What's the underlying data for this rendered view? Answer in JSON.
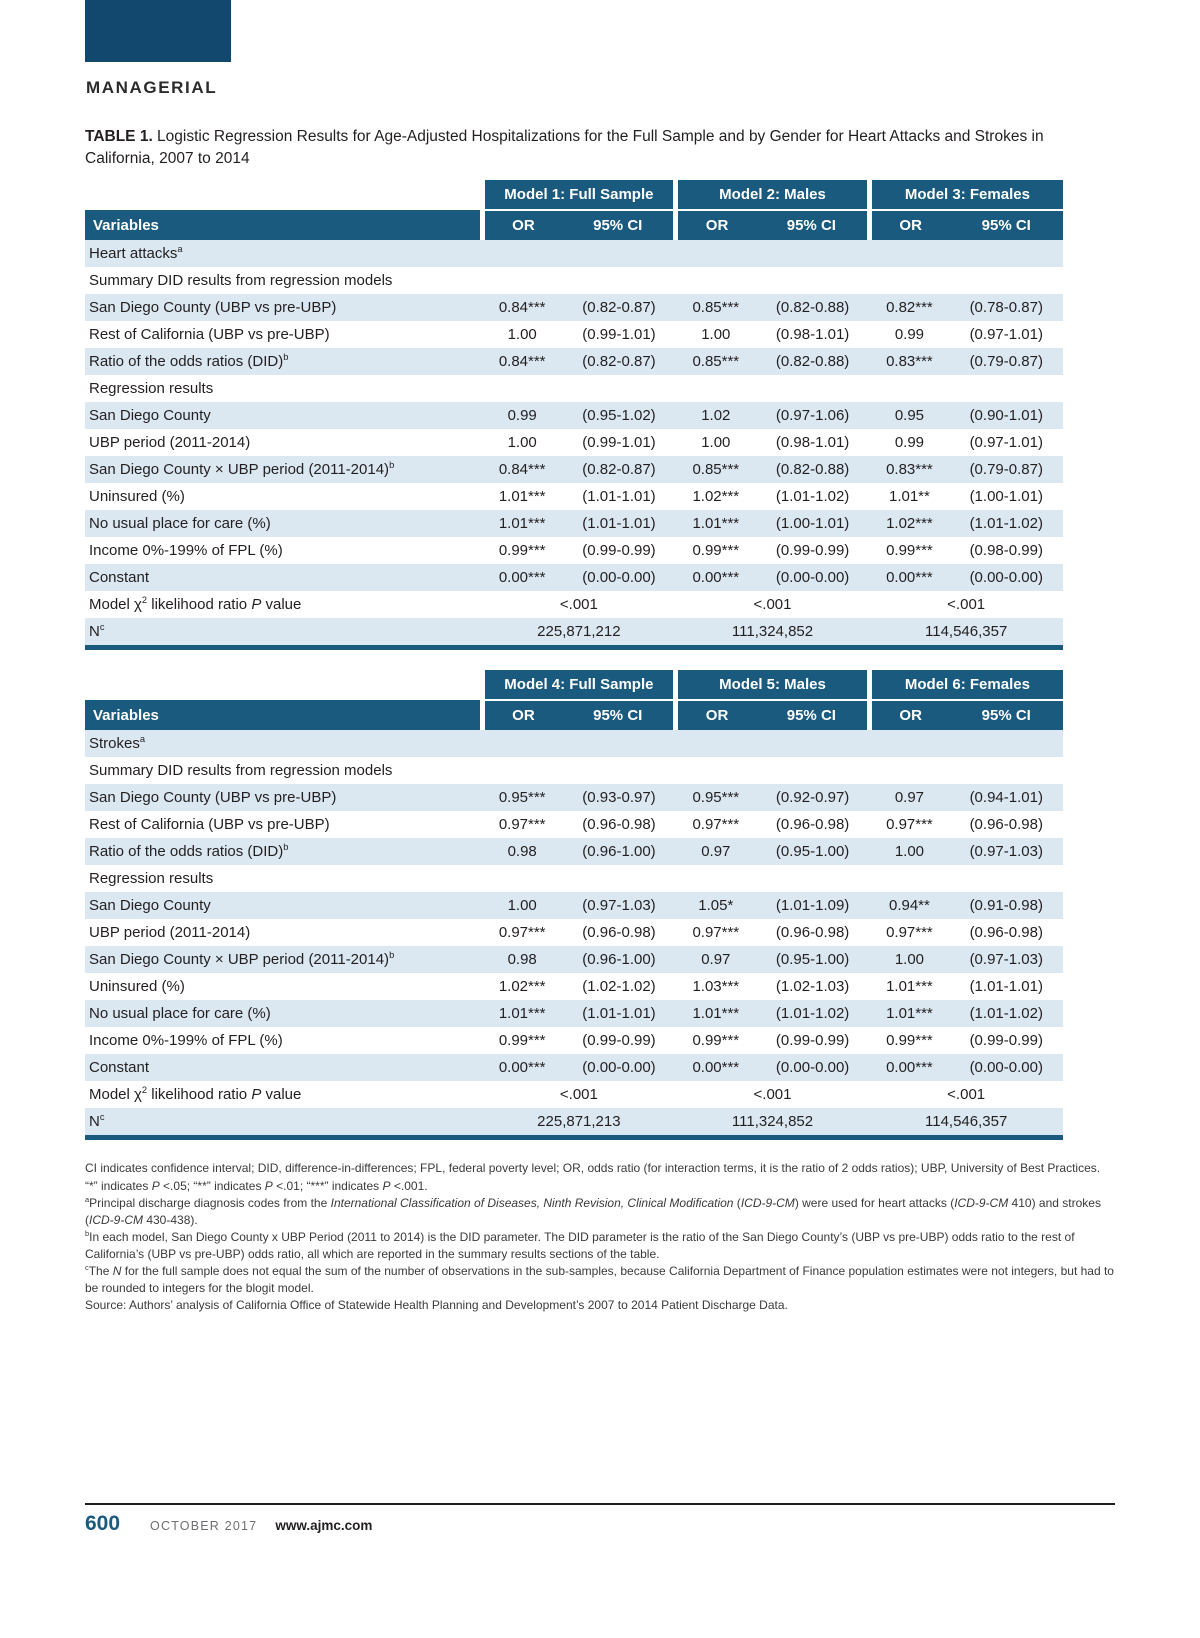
{
  "page": {
    "section_label": "MANAGERIAL"
  },
  "colors": {
    "header_blue": "#1a5a7e",
    "row_shade_blue": "#dbe8f2",
    "logo_navy": "#12486e"
  },
  "title": {
    "label": "TABLE 1.",
    "text": " Logistic Regression Results for Age-Adjusted Hospitalizations for the Full Sample and by Gender for Heart Attacks and Strokes in California, 2007 to 2014"
  },
  "tables": [
    {
      "models": [
        "Model 1: Full Sample",
        "Model 2: Males",
        "Model 3: Females"
      ],
      "variables_label": "Variables",
      "sub_headers": [
        "OR",
        "95% CI"
      ],
      "rows": [
        {
          "type": "section",
          "label": [
            {
              "t": "Heart attacks"
            },
            {
              "t": "a",
              "sup": true
            }
          ]
        },
        {
          "type": "subsection",
          "label": "Summary DID results from regression models"
        },
        {
          "type": "data",
          "label": "San Diego County (UBP vs pre-UBP)",
          "values": [
            "0.84***",
            "(0.82-0.87)",
            "0.85***",
            "(0.82-0.88)",
            "0.82***",
            "(0.78-0.87)"
          ]
        },
        {
          "type": "data",
          "label": "Rest of California (UBP vs pre-UBP)",
          "values": [
            "1.00",
            "(0.99-1.01)",
            "1.00",
            "(0.98-1.01)",
            "0.99",
            "(0.97-1.01)"
          ]
        },
        {
          "type": "data",
          "label": [
            {
              "t": "Ratio of the odds ratios (DID)"
            },
            {
              "t": "b",
              "sup": true
            }
          ],
          "values": [
            "0.84***",
            "(0.82-0.87)",
            "0.85***",
            "(0.82-0.88)",
            "0.83***",
            "(0.79-0.87)"
          ]
        },
        {
          "type": "subsection",
          "label": "Regression results"
        },
        {
          "type": "data",
          "label": "San Diego County",
          "values": [
            "0.99",
            "(0.95-1.02)",
            "1.02",
            "(0.97-1.06)",
            "0.95",
            "(0.90-1.01)"
          ]
        },
        {
          "type": "data",
          "label": "UBP period (2011-2014)",
          "values": [
            "1.00",
            "(0.99-1.01)",
            "1.00",
            "(0.98-1.01)",
            "0.99",
            "(0.97-1.01)"
          ]
        },
        {
          "type": "data",
          "label": [
            {
              "t": "San Diego County × UBP period (2011-2014)"
            },
            {
              "t": "b",
              "sup": true
            }
          ],
          "values": [
            "0.84***",
            "(0.82-0.87)",
            "0.85***",
            "(0.82-0.88)",
            "0.83***",
            "(0.79-0.87)"
          ]
        },
        {
          "type": "data",
          "label": "Uninsured (%)",
          "values": [
            "1.01***",
            "(1.01-1.01)",
            "1.02***",
            "(1.01-1.02)",
            "1.01**",
            "(1.00-1.01)"
          ]
        },
        {
          "type": "data",
          "label": "No usual place for care (%)",
          "values": [
            "1.01***",
            "(1.01-1.01)",
            "1.01***",
            "(1.00-1.01)",
            "1.02***",
            "(1.01-1.02)"
          ]
        },
        {
          "type": "data",
          "label": "Income 0%-199% of FPL (%)",
          "values": [
            "0.99***",
            "(0.99-0.99)",
            "0.99***",
            "(0.99-0.99)",
            "0.99***",
            "(0.98-0.99)"
          ]
        },
        {
          "type": "data",
          "label": "Constant",
          "values": [
            "0.00***",
            "(0.00-0.00)",
            "0.00***",
            "(0.00-0.00)",
            "0.00***",
            "(0.00-0.00)"
          ]
        },
        {
          "type": "span",
          "label": [
            {
              "t": "Model χ"
            },
            {
              "t": "2",
              "sup": true
            },
            {
              "t": " likelihood ratio "
            },
            {
              "t": "P",
              "i": true
            },
            {
              "t": " value"
            }
          ],
          "values": [
            "<.001",
            "<.001",
            "<.001"
          ]
        },
        {
          "type": "span",
          "label": [
            {
              "t": "N"
            },
            {
              "t": "c",
              "sup": true
            }
          ],
          "values": [
            "225,871,212",
            "111,324,852",
            "114,546,357"
          ]
        }
      ]
    },
    {
      "models": [
        "Model 4: Full Sample",
        "Model 5: Males",
        "Model 6: Females"
      ],
      "variables_label": "Variables",
      "sub_headers": [
        "OR",
        "95% CI"
      ],
      "rows": [
        {
          "type": "section",
          "label": [
            {
              "t": "Strokes"
            },
            {
              "t": "a",
              "sup": true
            }
          ]
        },
        {
          "type": "subsection",
          "label": "Summary DID results from regression models"
        },
        {
          "type": "data",
          "label": "San Diego County (UBP vs pre-UBP)",
          "values": [
            "0.95***",
            "(0.93-0.97)",
            "0.95***",
            "(0.92-0.97)",
            "0.97",
            "(0.94-1.01)"
          ]
        },
        {
          "type": "data",
          "label": "Rest of California (UBP vs pre-UBP)",
          "values": [
            "0.97***",
            "(0.96-0.98)",
            "0.97***",
            "(0.96-0.98)",
            "0.97***",
            "(0.96-0.98)"
          ]
        },
        {
          "type": "data",
          "label": [
            {
              "t": "Ratio of the odds ratios (DID)"
            },
            {
              "t": "b",
              "sup": true
            }
          ],
          "values": [
            "0.98",
            "(0.96-1.00)",
            "0.97",
            "(0.95-1.00)",
            "1.00",
            "(0.97-1.03)"
          ]
        },
        {
          "type": "subsection",
          "label": "Regression results"
        },
        {
          "type": "data",
          "label": "San Diego County",
          "values": [
            "1.00",
            "(0.97-1.03)",
            "1.05*",
            "(1.01-1.09)",
            "0.94**",
            "(0.91-0.98)"
          ]
        },
        {
          "type": "data",
          "label": "UBP period (2011-2014)",
          "values": [
            "0.97***",
            "(0.96-0.98)",
            "0.97***",
            "(0.96-0.98)",
            "0.97***",
            "(0.96-0.98)"
          ]
        },
        {
          "type": "data",
          "label": [
            {
              "t": "San Diego County × UBP period (2011-2014)"
            },
            {
              "t": "b",
              "sup": true
            }
          ],
          "values": [
            "0.98",
            "(0.96-1.00)",
            "0.97",
            "(0.95-1.00)",
            "1.00",
            "(0.97-1.03)"
          ]
        },
        {
          "type": "data",
          "label": "Uninsured (%)",
          "values": [
            "1.02***",
            "(1.02-1.02)",
            "1.03***",
            "(1.02-1.03)",
            "1.01***",
            "(1.01-1.01)"
          ]
        },
        {
          "type": "data",
          "label": "No usual place for care (%)",
          "values": [
            "1.01***",
            "(1.01-1.01)",
            "1.01***",
            "(1.01-1.02)",
            "1.01***",
            "(1.01-1.02)"
          ]
        },
        {
          "type": "data",
          "label": "Income 0%-199% of FPL (%)",
          "values": [
            "0.99***",
            "(0.99-0.99)",
            "0.99***",
            "(0.99-0.99)",
            "0.99***",
            "(0.99-0.99)"
          ]
        },
        {
          "type": "data",
          "label": "Constant",
          "values": [
            "0.00***",
            "(0.00-0.00)",
            "0.00***",
            "(0.00-0.00)",
            "0.00***",
            "(0.00-0.00)"
          ]
        },
        {
          "type": "span",
          "label": [
            {
              "t": "Model χ"
            },
            {
              "t": "2",
              "sup": true
            },
            {
              "t": " likelihood ratio "
            },
            {
              "t": "P",
              "i": true
            },
            {
              "t": " value"
            }
          ],
          "values": [
            "<.001",
            "<.001",
            "<.001"
          ]
        },
        {
          "type": "span",
          "label": [
            {
              "t": "N"
            },
            {
              "t": "c",
              "sup": true
            }
          ],
          "values": [
            "225,871,213",
            "111,324,852",
            "114,546,357"
          ]
        }
      ]
    }
  ],
  "footnotes": [
    {
      "parts": [
        {
          "t": "CI indicates confidence interval; DID, difference-in-differences; FPL, federal poverty level; OR, odds ratio (for interaction terms, it is the ratio of 2 odds ratios); UBP, University of Best Practices."
        }
      ]
    },
    {
      "parts": [
        {
          "t": "“*” indicates "
        },
        {
          "t": "P",
          "i": true
        },
        {
          "t": " <.05; “**” indicates "
        },
        {
          "t": "P",
          "i": true
        },
        {
          "t": " <.01; “***” indicates "
        },
        {
          "t": "P",
          "i": true
        },
        {
          "t": " <.001."
        }
      ]
    },
    {
      "parts": [
        {
          "t": "a",
          "sup": true
        },
        {
          "t": "Principal discharge diagnosis codes from the "
        },
        {
          "t": "International Classification of Diseases, Ninth Revision, Clinical Modification",
          "i": true
        },
        {
          "t": " ("
        },
        {
          "t": "ICD-9-CM",
          "i": true
        },
        {
          "t": ") were used for heart attacks ("
        },
        {
          "t": "ICD-9-CM",
          "i": true
        },
        {
          "t": " 410) and strokes ("
        },
        {
          "t": "ICD-9-CM",
          "i": true
        },
        {
          "t": " 430-438)."
        }
      ]
    },
    {
      "parts": [
        {
          "t": "b",
          "sup": true
        },
        {
          "t": "In each model, San Diego County x UBP Period (2011 to 2014) is the DID parameter. The DID parameter is the ratio of the San Diego County’s (UBP vs pre-UBP) odds ratio to the rest of California’s (UBP vs pre-UBP) odds ratio, all which are reported in the summary results sections of the table."
        }
      ]
    },
    {
      "parts": [
        {
          "t": "c",
          "sup": true
        },
        {
          "t": "The "
        },
        {
          "t": "N",
          "i": true
        },
        {
          "t": " for the full sample does not equal the sum of the number of observations in the sub-samples, because California Department of Finance population estimates were not integers, but had to be rounded to integers for the blogit model."
        }
      ]
    },
    {
      "parts": [
        {
          "t": "Source: Authors’ analysis of California Office of Statewide Health Planning and Development’s 2007 to 2014 Patient Discharge Data."
        }
      ]
    }
  ],
  "footer": {
    "page_number": "600",
    "issue": "OCTOBER 2017",
    "site": "www.ajmc.com"
  }
}
